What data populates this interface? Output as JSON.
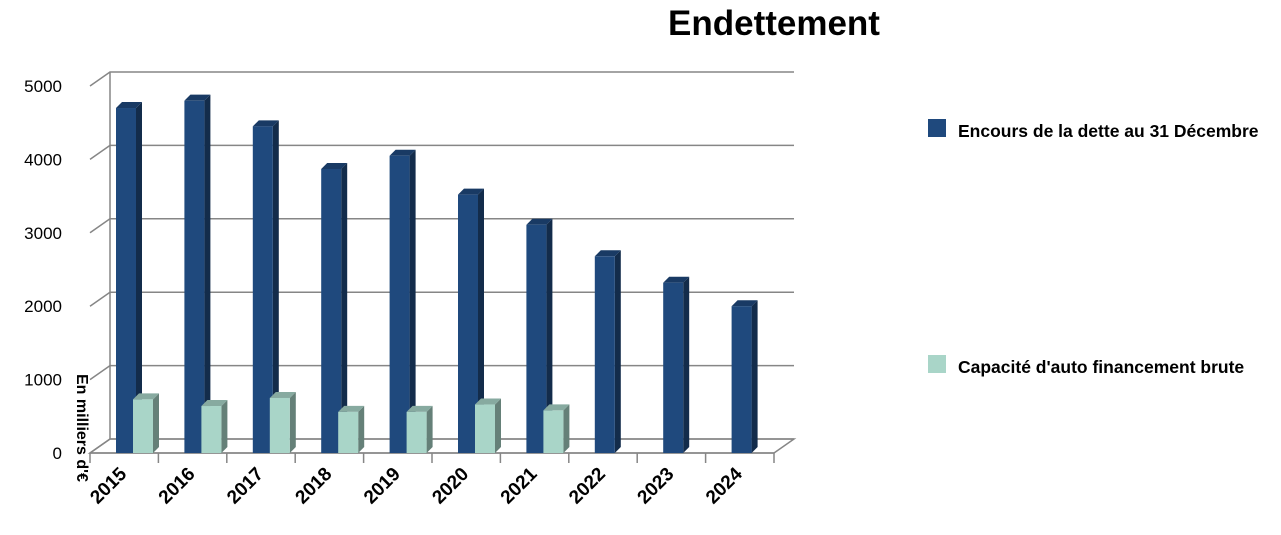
{
  "chart_data": {
    "type": "bar",
    "title": "Endettement",
    "ylabel": "En milliers d'€",
    "xlabel": "",
    "ylim": [
      0,
      5000
    ],
    "yticks": [
      0,
      1000,
      2000,
      3000,
      4000,
      5000
    ],
    "categories": [
      "2015",
      "2016",
      "2017",
      "2018",
      "2019",
      "2020",
      "2021",
      "2022",
      "2023",
      "2024"
    ],
    "series": [
      {
        "name": "Encours de la dette au 31 Décembre",
        "color": "#1F497D",
        "values": [
          4700,
          4800,
          4450,
          3870,
          4050,
          3520,
          3110,
          2680,
          2320,
          2000
        ]
      },
      {
        "name": "Capacité d'auto financement brute",
        "color": "#A9D5C8",
        "values": [
          730,
          640,
          750,
          560,
          560,
          660,
          580,
          null,
          null,
          null
        ]
      }
    ],
    "grid": true,
    "legend_position": "right",
    "style": "3d-clustered-column"
  }
}
